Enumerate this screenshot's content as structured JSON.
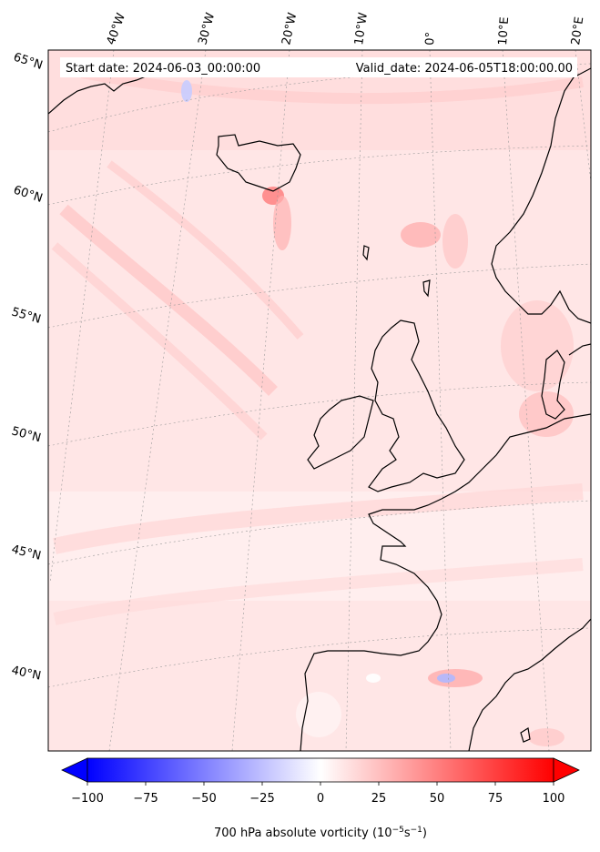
{
  "header": {
    "start_date": "Start date: 2024-06-03_00:00:00",
    "valid_date": "Valid_date: 2024-06-05T18:00:00.00"
  },
  "lon_labels": [
    "40°W",
    "30°W",
    "20°W",
    "10°W",
    "0°",
    "10°E",
    "20°E"
  ],
  "lat_labels": [
    "65°N",
    "60°N",
    "55°N",
    "50°N",
    "45°N",
    "40°N"
  ],
  "colorbar": {
    "ticks": [
      "−100",
      "−75",
      "−50",
      "−25",
      "0",
      "25",
      "50",
      "75",
      "100"
    ],
    "label_main": "700 hPa absolute vorticity (10",
    "label_sup1": "−5",
    "label_mid": "s",
    "label_sup2": "−1",
    "label_end": ")",
    "min_color": "#0000ff",
    "mid_color": "#ffffff",
    "max_color": "#ff0000"
  },
  "map": {
    "background_color": "#ffe9e9",
    "coastline_color": "#000000"
  }
}
